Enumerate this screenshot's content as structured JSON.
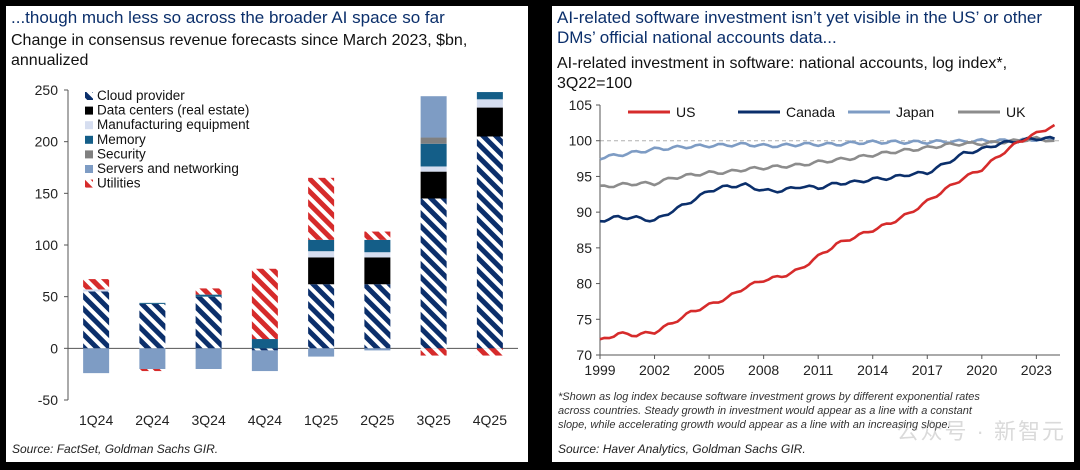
{
  "left": {
    "title": "...though much less so across the broader AI space so far",
    "subtitle": "Change in consensus revenue forecasts since March 2023, $bn, annualized",
    "source": "Source: FactSet, Goldman Sachs GIR."
  },
  "right": {
    "title": "AI-related software investment isn’t yet visible in the US’ or other DMs’ official national accounts data...",
    "subtitle": "AI-related investment in software: national accounts, log index*, 3Q22=100",
    "footnote_lines": [
      "*Shown as log index because software investment grows by different exponential rates",
      "across countries. Steady growth in investment would appear as a line with a constant",
      "slope, while accelerating growth would appear as a line with an increasing slope."
    ],
    "source": "Source: Haver Analytics, Goldman Sachs GIR."
  },
  "watermark": "公众号 · 新智元",
  "chart_data": [
    {
      "type": "bar",
      "stacked": true,
      "title": "Change in consensus revenue forecasts since March 2023, $bn, annualized",
      "categories": [
        "1Q24",
        "2Q24",
        "3Q24",
        "4Q24",
        "1Q25",
        "2Q25",
        "3Q25",
        "4Q25"
      ],
      "ylim": [
        -50,
        250
      ],
      "yticks": [
        -50,
        0,
        50,
        100,
        150,
        200,
        250
      ],
      "series": [
        {
          "name": "Cloud provider",
          "color": "#0b2f6b",
          "pattern": "stripe",
          "values": [
            55,
            43,
            50,
            -2,
            62,
            62,
            145,
            205
          ]
        },
        {
          "name": "Data centers (real estate)",
          "color": "#000000",
          "pattern": "solid",
          "values": [
            0,
            0,
            0,
            0,
            26,
            26,
            26,
            28
          ]
        },
        {
          "name": "Manufacturing equipment",
          "color": "#d6def0",
          "pattern": "solid",
          "values": [
            2,
            0,
            0,
            0,
            6,
            5,
            5,
            8
          ]
        },
        {
          "name": "Memory",
          "color": "#145e88",
          "pattern": "solid",
          "values": [
            0,
            1,
            2,
            9,
            11,
            12,
            22,
            7
          ]
        },
        {
          "name": "Security",
          "color": "#808080",
          "pattern": "solid",
          "values": [
            0,
            0,
            0,
            0,
            0,
            0,
            6,
            0
          ]
        },
        {
          "name": "Servers and networking",
          "color": "#7e9cc4",
          "pattern": "solid",
          "values": [
            -24,
            -20,
            -20,
            -20,
            -8,
            -2,
            40,
            0
          ]
        },
        {
          "name": "Utilities",
          "color": "#d62b2b",
          "pattern": "stripe",
          "values": [
            10,
            -2,
            6,
            68,
            60,
            8,
            -7,
            -7
          ]
        }
      ],
      "legend": [
        "Cloud provider",
        "Data centers (real estate)",
        "Manufacturing equipment",
        "Memory",
        "Security",
        "Servers and networking",
        "Utilities"
      ]
    },
    {
      "type": "line",
      "title": "AI-related investment in software: national accounts, log index*, 3Q22=100",
      "xlim": [
        1999,
        2024.3
      ],
      "xticks": [
        1999,
        2002,
        2005,
        2008,
        2011,
        2014,
        2017,
        2020,
        2023
      ],
      "ylim": [
        70,
        105
      ],
      "yticks": [
        70,
        75,
        80,
        85,
        90,
        95,
        100,
        105
      ],
      "reference_line": 100,
      "series": [
        {
          "name": "US",
          "color": "#d62b2b",
          "points": [
            [
              1999,
              72
            ],
            [
              2000,
              73
            ],
            [
              2001,
              72.8
            ],
            [
              2002,
              73.2
            ],
            [
              2003,
              74.5
            ],
            [
              2004,
              76
            ],
            [
              2005,
              77
            ],
            [
              2006,
              78
            ],
            [
              2007,
              79.5
            ],
            [
              2008,
              80.5
            ],
            [
              2009,
              81
            ],
            [
              2010,
              82
            ],
            [
              2011,
              83.8
            ],
            [
              2012,
              85.5
            ],
            [
              2013,
              86.5
            ],
            [
              2014,
              87.5
            ],
            [
              2015,
              88.5
            ],
            [
              2016,
              89.8
            ],
            [
              2017,
              91.5
            ],
            [
              2018,
              93.2
            ],
            [
              2019,
              94.8
            ],
            [
              2020,
              96
            ],
            [
              2021,
              98
            ],
            [
              2022,
              99.8
            ],
            [
              2023,
              101
            ],
            [
              2024,
              102.2
            ]
          ]
        },
        {
          "name": "Canada",
          "color": "#0b2f6b",
          "points": [
            [
              1999,
              88.8
            ],
            [
              2000,
              89.3
            ],
            [
              2001,
              89.2
            ],
            [
              2002,
              88.8
            ],
            [
              2003,
              90.2
            ],
            [
              2004,
              91.5
            ],
            [
              2005,
              93
            ],
            [
              2006,
              93.6
            ],
            [
              2007,
              93.8
            ],
            [
              2008,
              93
            ],
            [
              2009,
              93
            ],
            [
              2010,
              93.6
            ],
            [
              2011,
              93.4
            ],
            [
              2012,
              94
            ],
            [
              2013,
              94.2
            ],
            [
              2014,
              94.6
            ],
            [
              2015,
              94.8
            ],
            [
              2016,
              95.3
            ],
            [
              2017,
              95.5
            ],
            [
              2018,
              96.8
            ],
            [
              2019,
              98.2
            ],
            [
              2020,
              98.8
            ],
            [
              2021,
              99.6
            ],
            [
              2022,
              100
            ],
            [
              2023,
              100.3
            ],
            [
              2024,
              100.3
            ]
          ]
        },
        {
          "name": "Japan",
          "color": "#7e9cc4",
          "points": [
            [
              1999,
              97.6
            ],
            [
              2000,
              98
            ],
            [
              2001,
              98.4
            ],
            [
              2002,
              98.8
            ],
            [
              2003,
              99
            ],
            [
              2004,
              99.2
            ],
            [
              2005,
              99.3
            ],
            [
              2006,
              99.4
            ],
            [
              2007,
              99.5
            ],
            [
              2008,
              99.3
            ],
            [
              2009,
              99.3
            ],
            [
              2010,
              99.5
            ],
            [
              2011,
              99.5
            ],
            [
              2012,
              99.5
            ],
            [
              2013,
              99.7
            ],
            [
              2014,
              99.8
            ],
            [
              2015,
              99.8
            ],
            [
              2016,
              99.8
            ],
            [
              2017,
              99.8
            ],
            [
              2018,
              99.9
            ],
            [
              2019,
              99.9
            ],
            [
              2020,
              100
            ],
            [
              2021,
              100
            ],
            [
              2022,
              100
            ],
            [
              2023,
              100.2
            ],
            [
              2024,
              100.2
            ]
          ]
        },
        {
          "name": "UK",
          "color": "#8c8c8c",
          "points": [
            [
              1999,
              93.5
            ],
            [
              2000,
              93.8
            ],
            [
              2001,
              94
            ],
            [
              2002,
              94
            ],
            [
              2003,
              94.8
            ],
            [
              2004,
              95.2
            ],
            [
              2005,
              95.5
            ],
            [
              2006,
              95.6
            ],
            [
              2007,
              96
            ],
            [
              2008,
              96.2
            ],
            [
              2009,
              96.4
            ],
            [
              2010,
              96.6
            ],
            [
              2011,
              97
            ],
            [
              2012,
              97.3
            ],
            [
              2013,
              97.6
            ],
            [
              2014,
              98
            ],
            [
              2015,
              98.4
            ],
            [
              2016,
              98.7
            ],
            [
              2017,
              99
            ],
            [
              2018,
              99.4
            ],
            [
              2019,
              99.6
            ],
            [
              2020,
              99.6
            ],
            [
              2021,
              99.8
            ],
            [
              2022,
              100
            ],
            [
              2023,
              100.3
            ],
            [
              2024,
              100
            ]
          ]
        }
      ],
      "legend": [
        "US",
        "Canada",
        "Japan",
        "UK"
      ]
    }
  ]
}
